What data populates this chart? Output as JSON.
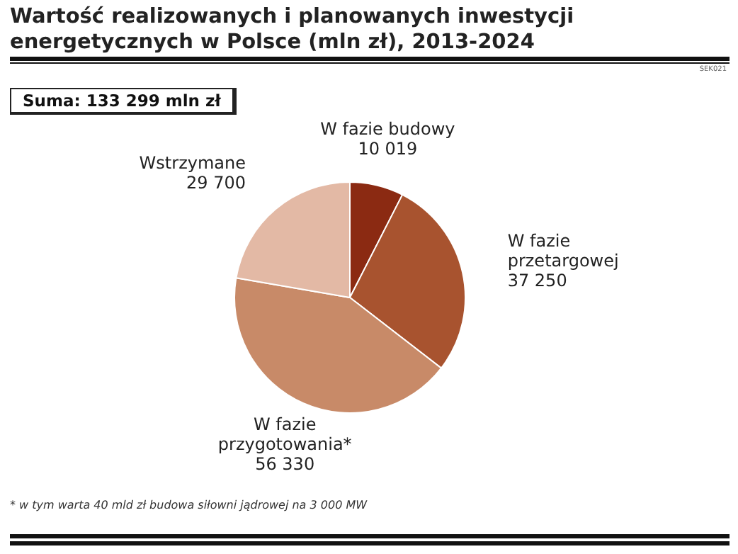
{
  "chart_data": {
    "type": "pie",
    "title": "Wartość realizowanych i planowanych inwestycji energetycznych w Polsce (mln zł), 2013-2024",
    "categories": [
      "W fazie budowy",
      "W fazie przetargowej",
      "W fazie przygotowania*",
      "Wstrzymane"
    ],
    "values": [
      10019,
      37250,
      56330,
      29700
    ],
    "value_labels": [
      "10 019",
      "37 250",
      "56 330",
      "29 700"
    ],
    "colors": [
      "#8b2a12",
      "#a8532f",
      "#c88a68",
      "#e3b9a5"
    ],
    "annotations": [
      "SEK021",
      "Suma: 133 299 mln zł",
      "* w tym warta 40 mld zł budowa siłowni jądrowej na 3 000 MW"
    ],
    "legend": false
  }
}
